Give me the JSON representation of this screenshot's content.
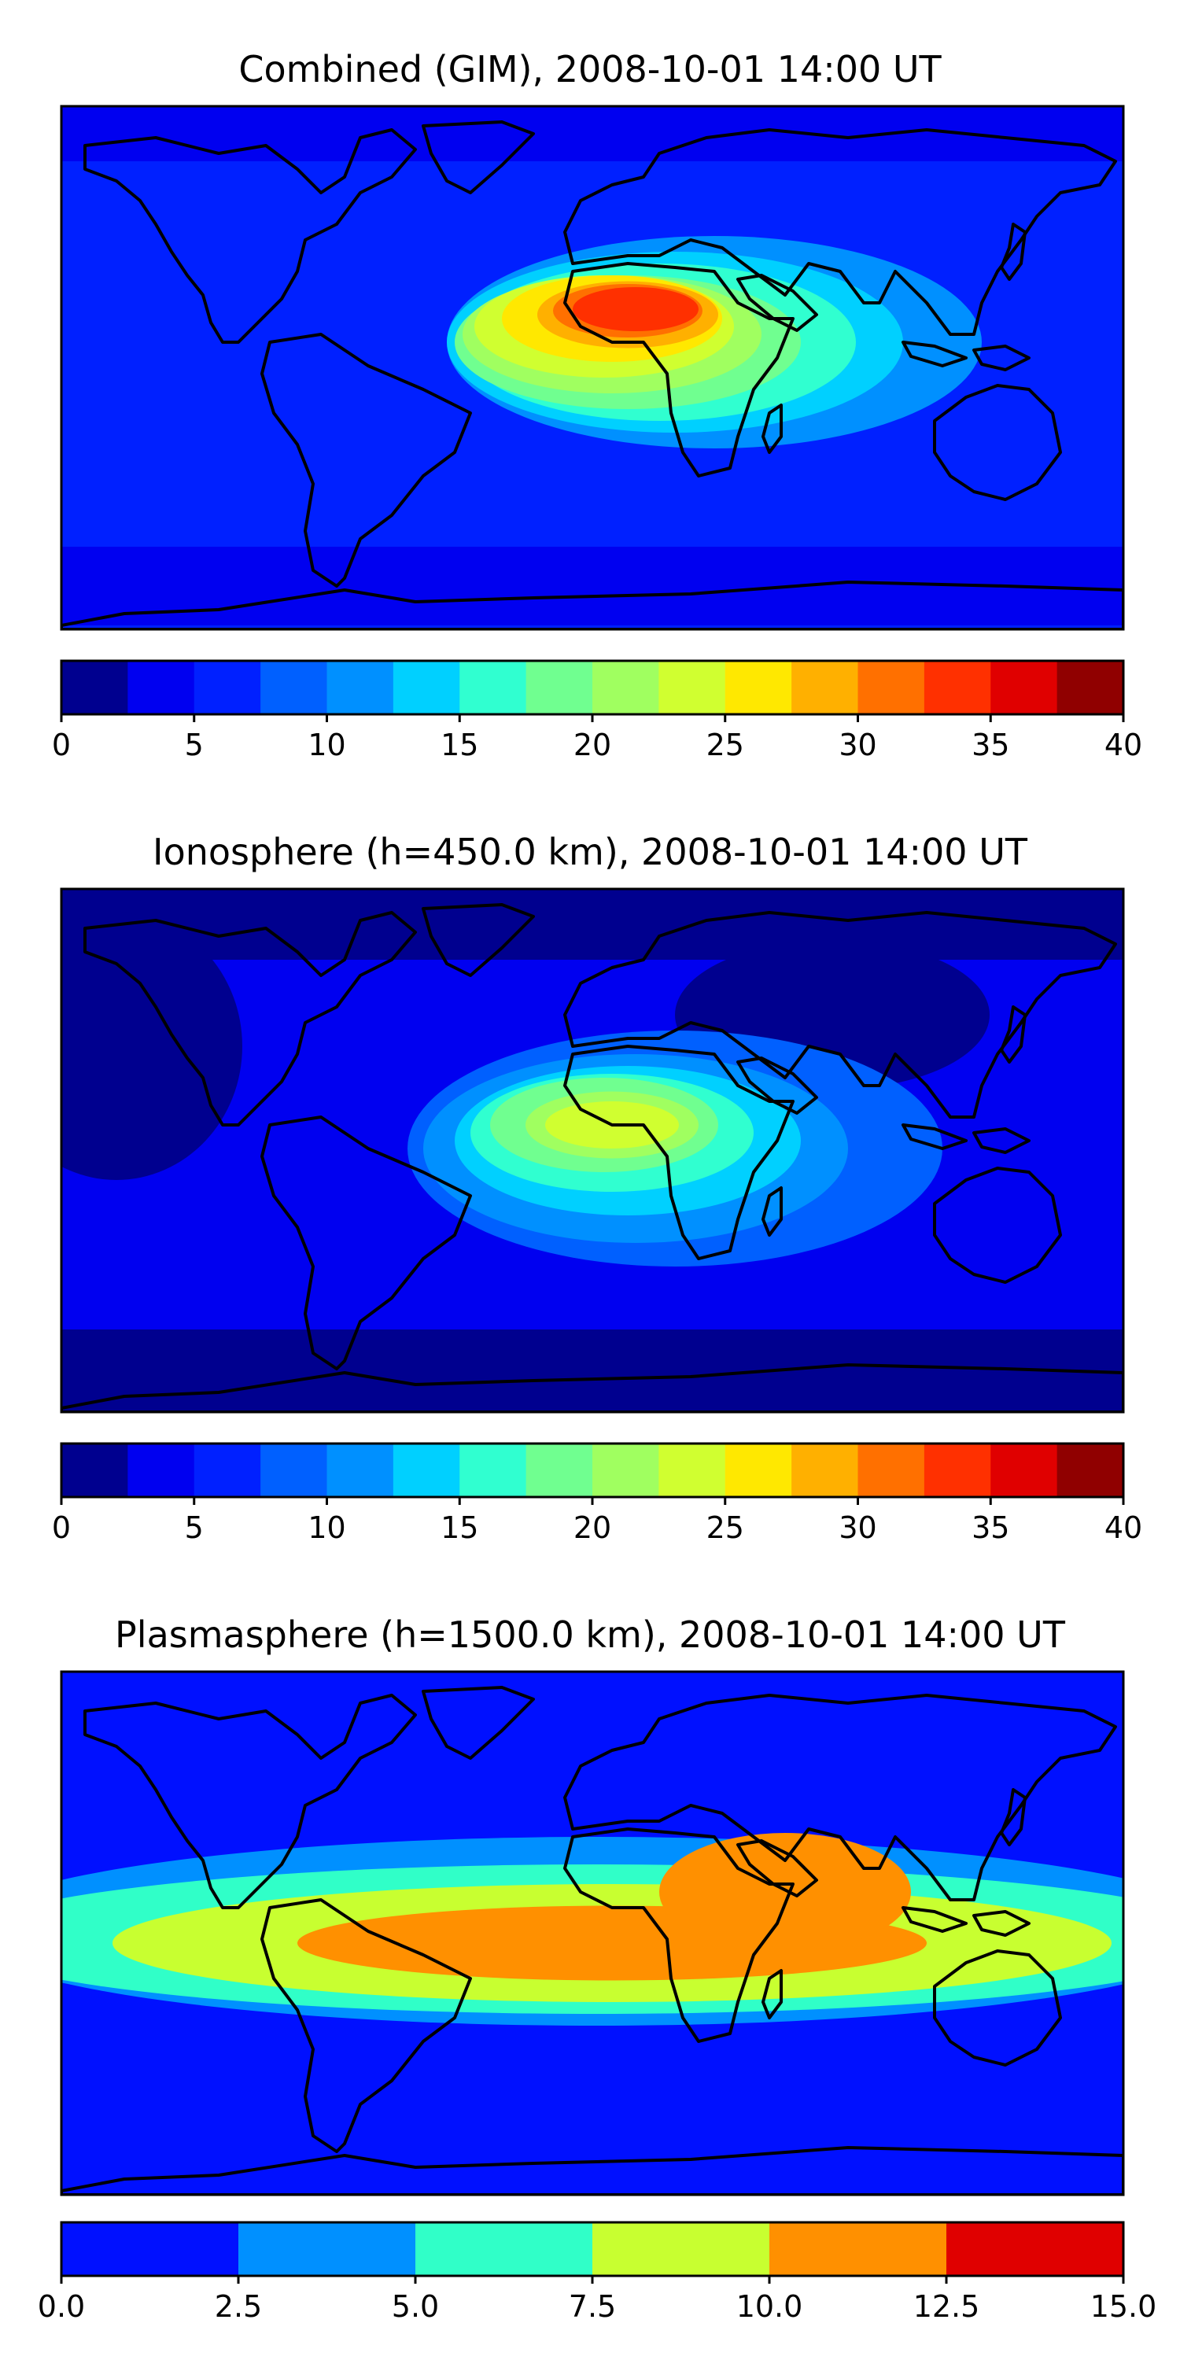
{
  "panels": [
    {
      "title": "Combined (GIM), 2008-10-01 14:00 UT",
      "colorbar": {
        "ticks": [
          "0",
          "5",
          "10",
          "15",
          "20",
          "25",
          "30",
          "35",
          "40"
        ],
        "colors": [
          "#00008f",
          "#0000f0",
          "#0020ff",
          "#0060ff",
          "#0090ff",
          "#00d0ff",
          "#30ffd0",
          "#70ff90",
          "#a0ff60",
          "#d0ff30",
          "#ffe800",
          "#ffb000",
          "#ff7000",
          "#ff3000",
          "#e00000",
          "#900000"
        ],
        "min": 0,
        "max": 40,
        "step": 2.5
      }
    },
    {
      "title": "Ionosphere  (h=450.0 km), 2008-10-01 14:00 UT",
      "colorbar": {
        "ticks": [
          "0",
          "5",
          "10",
          "15",
          "20",
          "25",
          "30",
          "35",
          "40"
        ],
        "colors": [
          "#00008f",
          "#0000f0",
          "#0020ff",
          "#0060ff",
          "#0090ff",
          "#00d0ff",
          "#30ffd0",
          "#70ff90",
          "#a0ff60",
          "#d0ff30",
          "#ffe800",
          "#ffb000",
          "#ff7000",
          "#ff3000",
          "#e00000",
          "#900000"
        ],
        "min": 0,
        "max": 40,
        "step": 2.5
      }
    },
    {
      "title": "Plasmasphere (h=1500.0 km), 2008-10-01 14:00 UT",
      "colorbar": {
        "ticks": [
          "0.0",
          "2.5",
          "5.0",
          "7.5",
          "10.0",
          "12.5",
          "15.0"
        ],
        "colors": [
          "#0010ff",
          "#0090ff",
          "#30ffc8",
          "#c8ff30",
          "#ff9000",
          "#e00000"
        ],
        "min": 0,
        "max": 15,
        "step": 2.5
      }
    }
  ]
}
